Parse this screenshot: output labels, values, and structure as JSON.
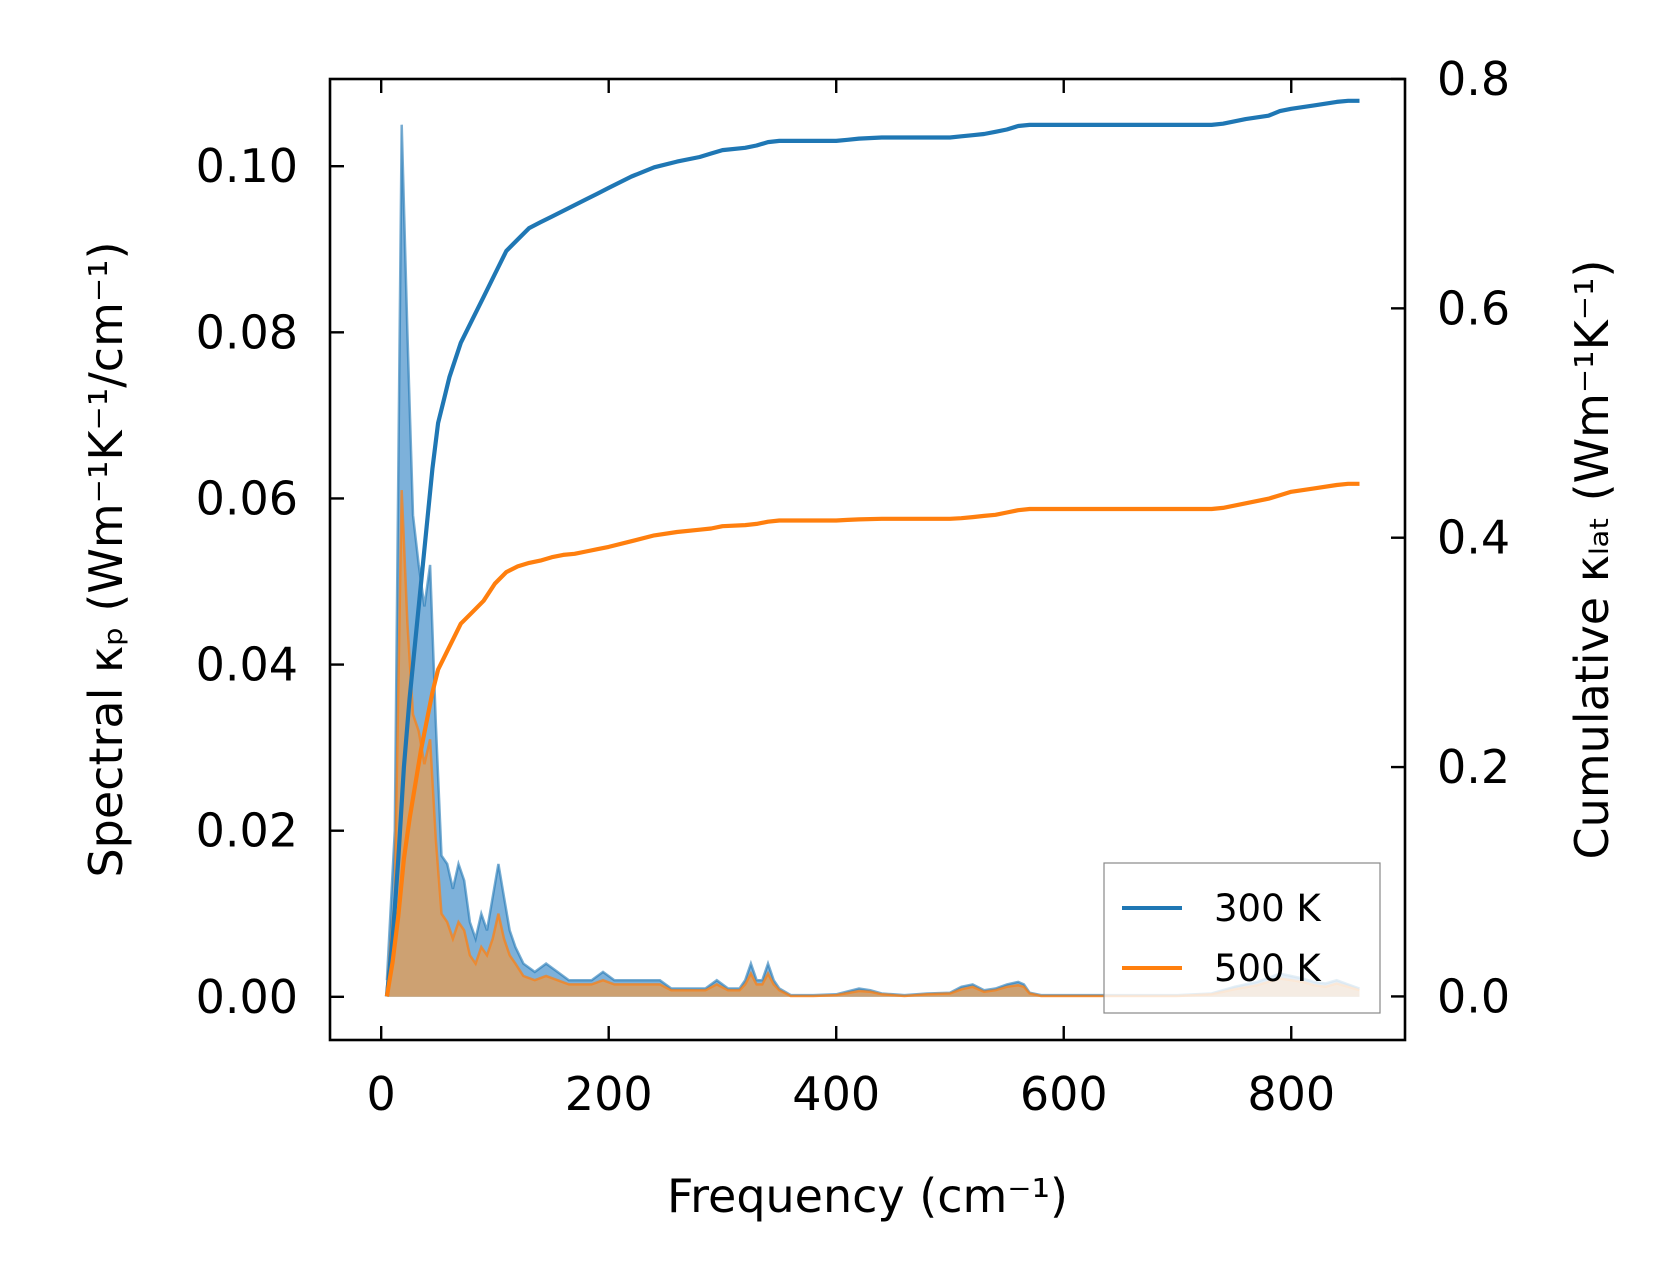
{
  "chart_data": {
    "type": "line",
    "xlabel": "Frequency (cm⁻¹)",
    "ylabel_left": "Spectral κₚ (Wm⁻¹K⁻¹/cm⁻¹)",
    "ylabel_right": "Cumulative κₗₐₜ (Wm⁻¹K⁻¹)",
    "xlim": [
      -45,
      900
    ],
    "ylim_left": [
      -0.0052,
      0.1105
    ],
    "ylim_right": [
      -0.038,
      0.8
    ],
    "xticks": [
      "0",
      "200",
      "400",
      "600",
      "800"
    ],
    "xtick_values": [
      0,
      200,
      400,
      600,
      800
    ],
    "yticks_left": [
      "0.00",
      "0.02",
      "0.04",
      "0.06",
      "0.08",
      "0.10"
    ],
    "ytick_left_values": [
      0,
      0.02,
      0.04,
      0.06,
      0.08,
      0.1
    ],
    "yticks_right": [
      "0.0",
      "0.2",
      "0.4",
      "0.6",
      "0.8"
    ],
    "ytick_right_values": [
      0,
      0.2,
      0.4,
      0.6,
      0.8
    ],
    "legend": {
      "position": "lower-right",
      "entries": [
        "300 K",
        "500 K"
      ]
    },
    "colors": {
      "300K": "#1f77b4",
      "500K": "#ff7f0e",
      "fill300": "#6fa8d6",
      "fill500": "#d2a06d"
    },
    "spectral_x": [
      5,
      12,
      18,
      23,
      28,
      33,
      38,
      43,
      48,
      53,
      58,
      63,
      68,
      73,
      78,
      83,
      88,
      93,
      98,
      103,
      108,
      113,
      118,
      125,
      135,
      145,
      155,
      165,
      175,
      185,
      195,
      205,
      215,
      225,
      235,
      245,
      255,
      265,
      275,
      285,
      295,
      305,
      315,
      320,
      325,
      330,
      335,
      340,
      345,
      350,
      360,
      380,
      400,
      420,
      430,
      440,
      450,
      460,
      480,
      500,
      510,
      520,
      530,
      540,
      550,
      560,
      565,
      570,
      580,
      600,
      650,
      700,
      730,
      750,
      770,
      790,
      800,
      810,
      820,
      830,
      840,
      850,
      860
    ],
    "spectral_300K": [
      0.002,
      0.02,
      0.105,
      0.08,
      0.058,
      0.052,
      0.047,
      0.052,
      0.033,
      0.017,
      0.016,
      0.013,
      0.016,
      0.014,
      0.009,
      0.007,
      0.01,
      0.008,
      0.012,
      0.016,
      0.012,
      0.008,
      0.006,
      0.004,
      0.003,
      0.004,
      0.003,
      0.002,
      0.002,
      0.002,
      0.003,
      0.002,
      0.002,
      0.002,
      0.002,
      0.002,
      0.001,
      0.001,
      0.001,
      0.001,
      0.002,
      0.001,
      0.001,
      0.002,
      0.004,
      0.002,
      0.002,
      0.004,
      0.002,
      0.001,
      0.0002,
      0.0002,
      0.0003,
      0.001,
      0.0008,
      0.0004,
      0.0003,
      0.0002,
      0.0004,
      0.0005,
      0.0012,
      0.0015,
      0.0008,
      0.001,
      0.0015,
      0.0018,
      0.0015,
      0.0005,
      0.0002,
      0.0002,
      0.0002,
      0.0002,
      0.0004,
      0.0012,
      0.0018,
      0.0028,
      0.0025,
      0.0022,
      0.0018,
      0.0016,
      0.002,
      0.0015,
      0.001
    ],
    "spectral_500K": [
      0.001,
      0.012,
      0.061,
      0.045,
      0.034,
      0.032,
      0.028,
      0.031,
      0.019,
      0.01,
      0.009,
      0.007,
      0.009,
      0.008,
      0.005,
      0.004,
      0.006,
      0.005,
      0.007,
      0.01,
      0.007,
      0.005,
      0.004,
      0.0025,
      0.002,
      0.0025,
      0.002,
      0.0015,
      0.0015,
      0.0015,
      0.002,
      0.0015,
      0.0015,
      0.0015,
      0.0015,
      0.0015,
      0.0008,
      0.0008,
      0.0008,
      0.0008,
      0.0015,
      0.0008,
      0.0008,
      0.0015,
      0.0028,
      0.0015,
      0.0015,
      0.0028,
      0.0015,
      0.0008,
      0.0001,
      0.0001,
      0.0002,
      0.0007,
      0.0006,
      0.0003,
      0.0002,
      0.0001,
      0.0003,
      0.0004,
      0.0009,
      0.0012,
      0.0006,
      0.0008,
      0.0012,
      0.0014,
      0.0012,
      0.0004,
      0.0001,
      0.0001,
      0.0001,
      0.0001,
      0.0003,
      0.0009,
      0.0014,
      0.0022,
      0.002,
      0.0018,
      0.0014,
      0.0012,
      0.0016,
      0.0012,
      0.0008
    ],
    "cumulative_x": [
      5,
      10,
      15,
      20,
      25,
      30,
      35,
      40,
      45,
      50,
      55,
      60,
      70,
      80,
      90,
      100,
      110,
      120,
      130,
      140,
      150,
      160,
      170,
      180,
      190,
      200,
      220,
      240,
      260,
      280,
      290,
      300,
      320,
      330,
      340,
      350,
      360,
      400,
      410,
      420,
      440,
      460,
      480,
      500,
      510,
      520,
      530,
      540,
      550,
      560,
      570,
      580,
      600,
      640,
      680,
      720,
      730,
      740,
      760,
      780,
      790,
      800,
      820,
      840,
      850,
      860
    ],
    "cumulative_300K": [
      0,
      0.05,
      0.12,
      0.2,
      0.26,
      0.31,
      0.36,
      0.41,
      0.46,
      0.5,
      0.52,
      0.54,
      0.57,
      0.59,
      0.61,
      0.63,
      0.65,
      0.66,
      0.67,
      0.675,
      0.68,
      0.685,
      0.69,
      0.695,
      0.7,
      0.705,
      0.715,
      0.723,
      0.728,
      0.732,
      0.735,
      0.738,
      0.74,
      0.742,
      0.745,
      0.746,
      0.746,
      0.746,
      0.747,
      0.748,
      0.749,
      0.749,
      0.749,
      0.749,
      0.75,
      0.751,
      0.752,
      0.754,
      0.756,
      0.759,
      0.76,
      0.76,
      0.76,
      0.76,
      0.76,
      0.76,
      0.76,
      0.761,
      0.765,
      0.768,
      0.772,
      0.774,
      0.777,
      0.78,
      0.781,
      0.781
    ],
    "cumulative_500K": [
      0,
      0.03,
      0.07,
      0.12,
      0.155,
      0.185,
      0.215,
      0.24,
      0.265,
      0.285,
      0.295,
      0.305,
      0.325,
      0.335,
      0.345,
      0.36,
      0.37,
      0.375,
      0.378,
      0.38,
      0.383,
      0.385,
      0.386,
      0.388,
      0.39,
      0.392,
      0.397,
      0.402,
      0.405,
      0.407,
      0.408,
      0.41,
      0.411,
      0.412,
      0.414,
      0.415,
      0.415,
      0.415,
      0.4155,
      0.416,
      0.4165,
      0.4165,
      0.4165,
      0.4165,
      0.417,
      0.418,
      0.419,
      0.42,
      0.422,
      0.424,
      0.425,
      0.425,
      0.425,
      0.425,
      0.425,
      0.425,
      0.425,
      0.426,
      0.43,
      0.434,
      0.437,
      0.44,
      0.443,
      0.446,
      0.447,
      0.447
    ]
  }
}
